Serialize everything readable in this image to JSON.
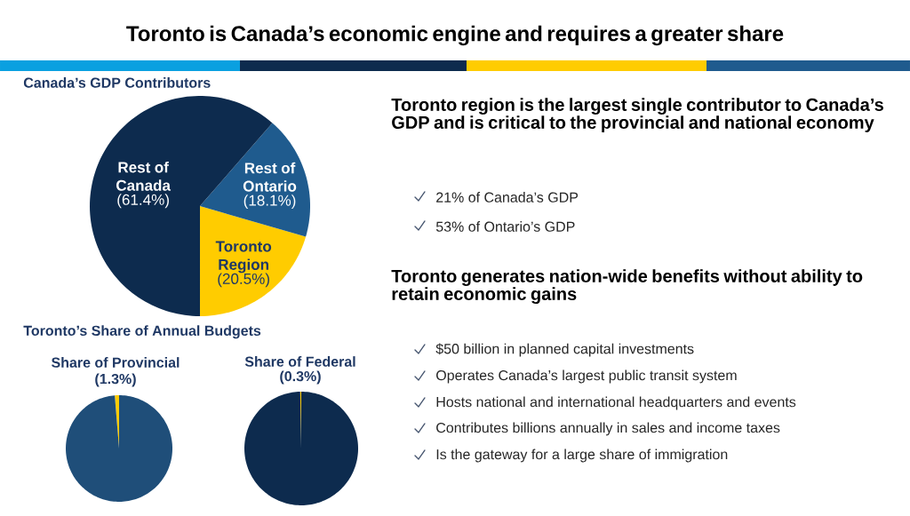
{
  "chart_data": [
    {
      "type": "other",
      "title": "Toronto is Canada’s economic engine and requires a greater share"
    },
    {
      "type": "pie",
      "title": "Canada’s GDP Contributors",
      "categories": [
        "Toronto Region",
        "Rest of Ontario",
        "Rest of Canada"
      ],
      "values": [
        20.5,
        18.1,
        61.4
      ],
      "colors": [
        "#ffcc00",
        "#1f5b8e",
        "#0d2b4e"
      ],
      "value_labels": [
        "(20.5%)",
        "(18.1%)",
        "(61.4%)"
      ]
    },
    {
      "type": "other",
      "title": "Toronto region is the largest single contributor to Canada’s GDP and is critical to the provincial and national economy",
      "annotations": [
        "21% of Canada’s GDP",
        "53% of Ontario’s GDP"
      ]
    },
    {
      "type": "other",
      "title": "Toronto generates nation-wide benefits without ability to retain economic gains",
      "annotations": [
        "$50 billion in planned capital investments",
        "Operates Canada’s largest public transit system",
        "Hosts national and international headquarters and events",
        "Contributes billions annually in sales and income taxes",
        "Is the gateway for a large share of immigration"
      ]
    },
    {
      "type": "other",
      "title": "Toronto’s Share of Annual Budgets"
    },
    {
      "type": "pie",
      "title": "Share of Provincial",
      "subtitle": "(1.3%)",
      "categories": [
        null,
        null
      ],
      "values": [
        1.3,
        98.7
      ],
      "colors": [
        "#ffcc00",
        "#1f4e79"
      ]
    },
    {
      "type": "pie",
      "title": "Share of Federal",
      "subtitle": "(0.3%)",
      "categories": [
        null,
        null
      ],
      "values": [
        0.3,
        99.7
      ],
      "colors": [
        "#ffcc00",
        "#0d2b4e"
      ]
    }
  ]
}
